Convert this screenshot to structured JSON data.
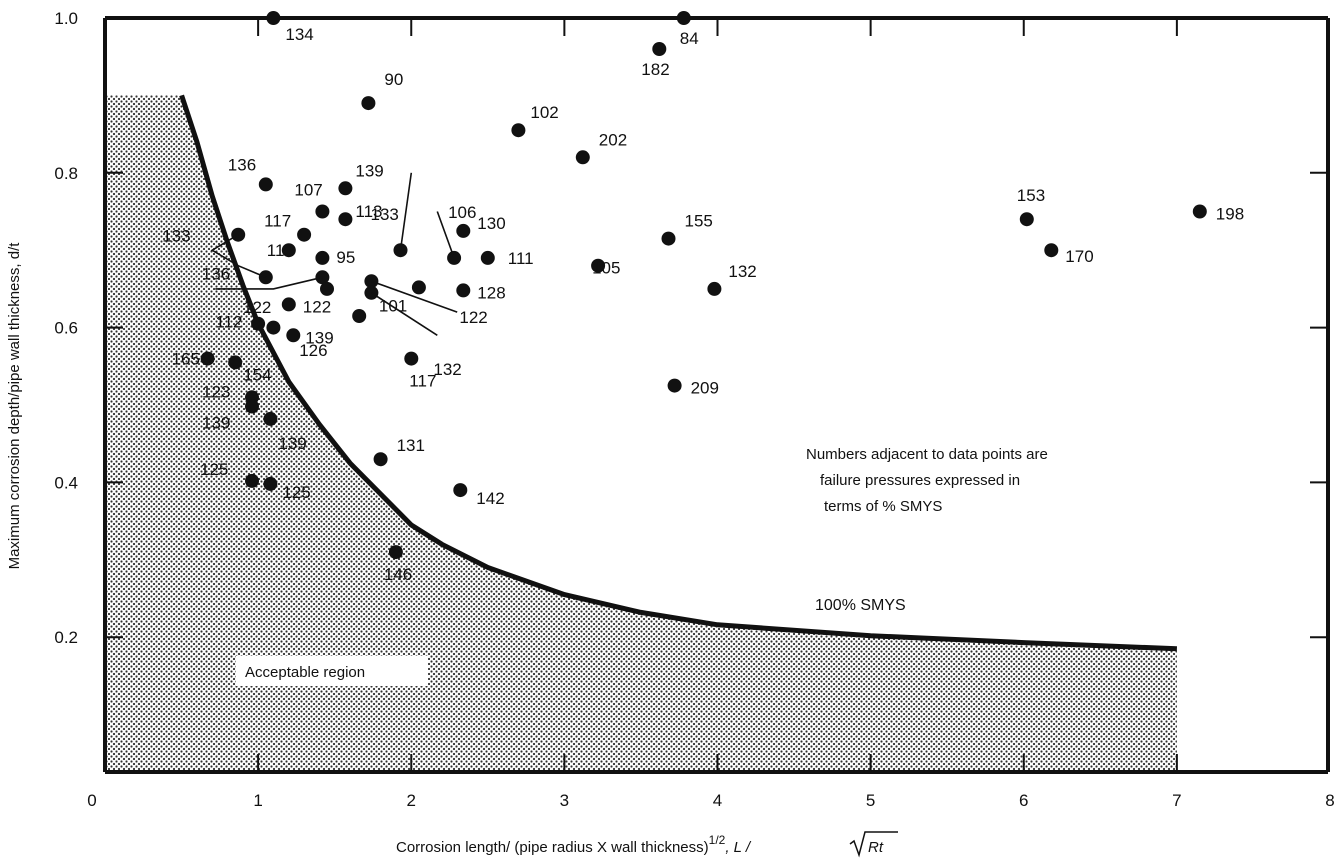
{
  "chart_data": {
    "type": "scatter",
    "title": "",
    "xlabel": "Corrosion length/ (pipe radius X wall thickness)",
    "xlabel_exponent": "1/2",
    "xlabel_formula_prefix": ", L /",
    "xlabel_formula_root": "Rt",
    "ylabel": "Maximum corrosion depth/pipe wall thickness, d/t",
    "xlim": [
      0,
      8
    ],
    "ylim": [
      0,
      1.0
    ],
    "x_ticks": [
      "0",
      "1",
      "2",
      "3",
      "4",
      "5",
      "6",
      "7",
      "8"
    ],
    "y_ticks": [
      "0.2",
      "0.4",
      "0.6",
      "0.8",
      "1.0"
    ],
    "y_tick_values": [
      0.2,
      0.4,
      0.6,
      0.8,
      1.0
    ],
    "grid": false,
    "annotation": [
      "Numbers adjacent to data points are",
      "failure pressures expressed in",
      "terms of % SMYS"
    ],
    "curve_label": "100% SMYS",
    "region_label": "Acceptable region",
    "curve": {
      "name": "100% SMYS",
      "x": [
        0.5,
        0.6,
        0.7,
        0.8,
        0.9,
        1.0,
        1.2,
        1.4,
        1.6,
        1.8,
        2.0,
        2.2,
        2.5,
        3.0,
        3.5,
        4.0,
        5.0,
        6.0,
        7.0
      ],
      "y": [
        0.9,
        0.84,
        0.77,
        0.71,
        0.655,
        0.605,
        0.53,
        0.475,
        0.425,
        0.385,
        0.345,
        0.32,
        0.29,
        0.255,
        0.232,
        0.216,
        0.202,
        0.193,
        0.185
      ]
    },
    "points": [
      {
        "x": 1.1,
        "y": 1.0,
        "label": "134"
      },
      {
        "x": 3.78,
        "y": 1.0,
        "label": "84"
      },
      {
        "x": 3.62,
        "y": 0.96,
        "label": "182"
      },
      {
        "x": 1.72,
        "y": 0.89,
        "label": "90"
      },
      {
        "x": 2.7,
        "y": 0.855,
        "label": "102"
      },
      {
        "x": 3.12,
        "y": 0.82,
        "label": "202"
      },
      {
        "x": 1.05,
        "y": 0.785,
        "label": "136"
      },
      {
        "x": 1.57,
        "y": 0.78,
        "label": "139"
      },
      {
        "x": 1.42,
        "y": 0.75,
        "label": "107"
      },
      {
        "x": 1.57,
        "y": 0.74,
        "label": "113"
      },
      {
        "x": 1.3,
        "y": 0.72,
        "label": "117"
      },
      {
        "x": 0.87,
        "y": 0.72,
        "label": "133"
      },
      {
        "x": 1.93,
        "y": 0.7,
        "label": "133"
      },
      {
        "x": 2.34,
        "y": 0.725,
        "label": "130"
      },
      {
        "x": 2.28,
        "y": 0.69,
        "label": "106"
      },
      {
        "x": 2.5,
        "y": 0.69,
        "label": "111"
      },
      {
        "x": 1.2,
        "y": 0.7,
        "label": "112"
      },
      {
        "x": 1.42,
        "y": 0.69,
        "label": "95"
      },
      {
        "x": 1.05,
        "y": 0.665,
        "label": "136"
      },
      {
        "x": 1.42,
        "y": 0.665,
        "label": "136"
      },
      {
        "x": 1.45,
        "y": 0.65,
        "label": "122"
      },
      {
        "x": 1.2,
        "y": 0.63,
        "label": "122"
      },
      {
        "x": 2.05,
        "y": 0.652,
        "label": "101"
      },
      {
        "x": 2.34,
        "y": 0.648,
        "label": "128"
      },
      {
        "x": 1.74,
        "y": 0.66,
        "label": "122"
      },
      {
        "x": 1.74,
        "y": 0.645,
        "label": "132"
      },
      {
        "x": 1.66,
        "y": 0.615,
        "label": "126"
      },
      {
        "x": 1.0,
        "y": 0.605,
        "label": "112"
      },
      {
        "x": 1.1,
        "y": 0.6,
        "label": "112"
      },
      {
        "x": 1.23,
        "y": 0.59,
        "label": "139"
      },
      {
        "x": 2.0,
        "y": 0.56,
        "label": "117"
      },
      {
        "x": 0.67,
        "y": 0.56,
        "label": "165"
      },
      {
        "x": 0.85,
        "y": 0.555,
        "label": "154"
      },
      {
        "x": 0.96,
        "y": 0.51,
        "label": "123"
      },
      {
        "x": 0.96,
        "y": 0.498,
        "label": "139"
      },
      {
        "x": 1.08,
        "y": 0.482,
        "label": "139"
      },
      {
        "x": 3.22,
        "y": 0.68,
        "label": "105"
      },
      {
        "x": 3.68,
        "y": 0.715,
        "label": "155"
      },
      {
        "x": 3.98,
        "y": 0.65,
        "label": "132"
      },
      {
        "x": 3.72,
        "y": 0.525,
        "label": "209"
      },
      {
        "x": 1.8,
        "y": 0.43,
        "label": "131"
      },
      {
        "x": 2.32,
        "y": 0.39,
        "label": "142"
      },
      {
        "x": 1.9,
        "y": 0.31,
        "label": "146"
      },
      {
        "x": 0.96,
        "y": 0.402,
        "label": "125"
      },
      {
        "x": 1.08,
        "y": 0.398,
        "label": "125"
      },
      {
        "x": 6.02,
        "y": 0.74,
        "label": "153"
      },
      {
        "x": 6.18,
        "y": 0.7,
        "label": "170"
      },
      {
        "x": 7.15,
        "y": 0.75,
        "label": "198"
      }
    ]
  }
}
